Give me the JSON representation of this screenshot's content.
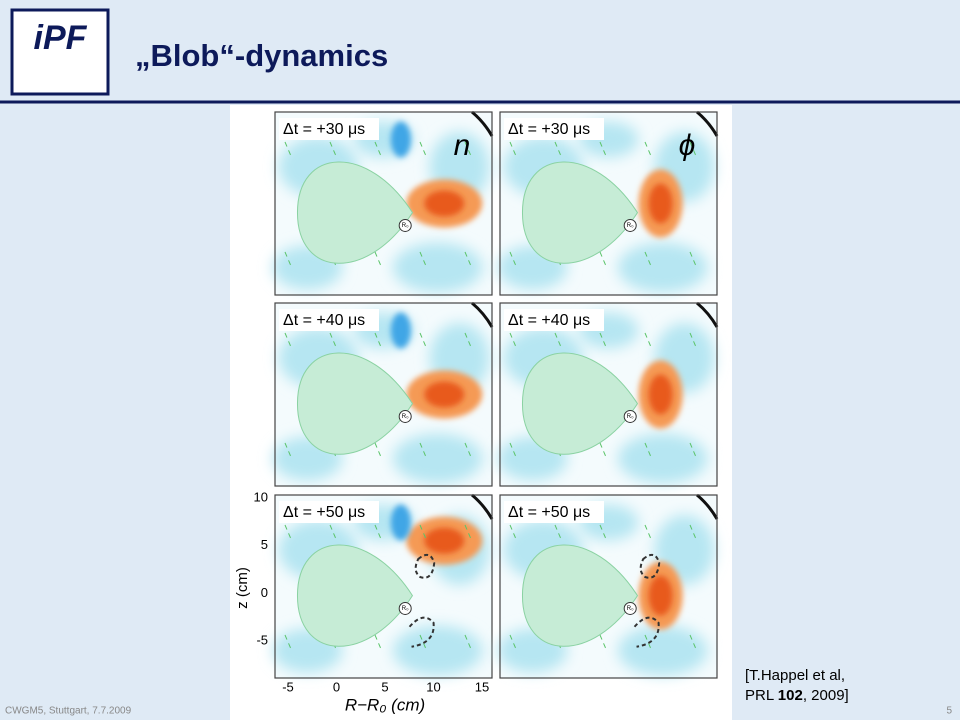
{
  "header": {
    "logo": "iPF",
    "title": "„Blob“-dynamics"
  },
  "figure": {
    "panels": [
      {
        "label": "Δt = +30 μs",
        "quantity": "n"
      },
      {
        "label": "Δt = +30 μs",
        "quantity": "ϕ"
      },
      {
        "label": "Δt = +40 μs"
      },
      {
        "label": "Δt = +40 μs"
      },
      {
        "label": "Δt = +50 μs"
      },
      {
        "label": "Δt = +50 μs"
      }
    ],
    "marker": "R₀",
    "x_ticks": [
      "-5",
      "0",
      "5",
      "10",
      "15"
    ],
    "y_ticks": [
      "10",
      "5",
      "0",
      "-5"
    ],
    "x_label": "R−R₀ (cm)",
    "y_label": "z (cm)"
  },
  "citation": {
    "line1": "[T.Happel et al,",
    "line2_start": "PRL ",
    "line2_volume": "102",
    "line2_end": ", 2009]"
  },
  "footer": {
    "event": "CWGM5, Stuttgart, 7.7.2009",
    "page": "5"
  }
}
